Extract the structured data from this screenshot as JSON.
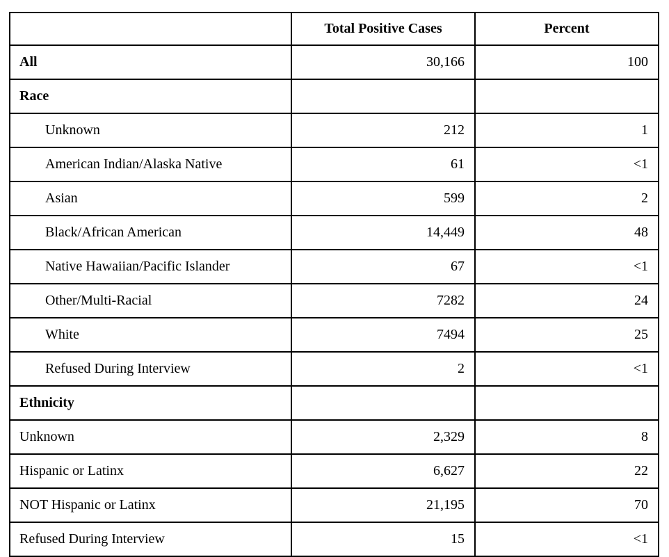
{
  "table": {
    "columns": [
      "",
      "Total Positive Cases",
      "Percent"
    ],
    "rows": [
      {
        "label": "All",
        "cases": "30,166",
        "percent": "100",
        "style": "section"
      },
      {
        "label": "Race",
        "cases": "",
        "percent": "",
        "style": "section"
      },
      {
        "label": "Unknown",
        "cases": "212",
        "percent": "1",
        "style": "indent"
      },
      {
        "label": "American Indian/Alaska Native",
        "cases": "61",
        "percent": "<1",
        "style": "indent"
      },
      {
        "label": "Asian",
        "cases": "599",
        "percent": "2",
        "style": "indent"
      },
      {
        "label": "Black/African American",
        "cases": "14,449",
        "percent": "48",
        "style": "indent"
      },
      {
        "label": "Native Hawaiian/Pacific Islander",
        "cases": "67",
        "percent": "<1",
        "style": "indent"
      },
      {
        "label": "Other/Multi-Racial",
        "cases": "7282",
        "percent": "24",
        "style": "indent"
      },
      {
        "label": "White",
        "cases": "7494",
        "percent": "25",
        "style": "indent"
      },
      {
        "label": "Refused During Interview",
        "cases": "2",
        "percent": "<1",
        "style": "indent"
      },
      {
        "label": "Ethnicity",
        "cases": "",
        "percent": "",
        "style": "section"
      },
      {
        "label": "Unknown",
        "cases": "2,329",
        "percent": "8",
        "style": "plain"
      },
      {
        "label": "Hispanic or Latinx",
        "cases": "6,627",
        "percent": "22",
        "style": "plain"
      },
      {
        "label": "NOT Hispanic or Latinx",
        "cases": "21,195",
        "percent": "70",
        "style": "plain"
      },
      {
        "label": "Refused During Interview",
        "cases": "15",
        "percent": "<1",
        "style": "plain"
      }
    ]
  }
}
